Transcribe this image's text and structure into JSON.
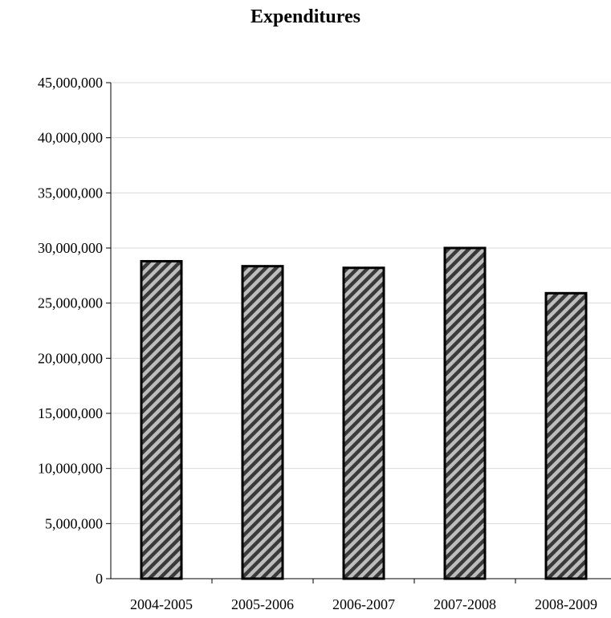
{
  "chart_data": {
    "type": "bar",
    "title": "Expenditures",
    "categories": [
      "2004-2005",
      "2005-2006",
      "2006-2007",
      "2007-2008",
      "2008-2009"
    ],
    "values": [
      28800000,
      28350000,
      28200000,
      30000000,
      25900000
    ],
    "ylim": [
      0,
      45000000
    ],
    "yticks": [
      0,
      5000000,
      10000000,
      15000000,
      20000000,
      25000000,
      30000000,
      35000000,
      40000000,
      45000000
    ],
    "ytick_labels": [
      "0",
      "5,000,000",
      "10,000,000",
      "15,000,000",
      "20,000,000",
      "25,000,000",
      "30,000,000",
      "35,000,000",
      "40,000,000",
      "45,000,000"
    ],
    "xlabel": "",
    "ylabel": "",
    "grid": true,
    "legend": "none",
    "bar_fill": "diagonal-hatch",
    "colors": {
      "bar_stripe_dark": "#3a3a3a",
      "bar_stripe_light": "#bdbdbd",
      "grid": "#d9d9d9",
      "axis": "#000000"
    }
  }
}
